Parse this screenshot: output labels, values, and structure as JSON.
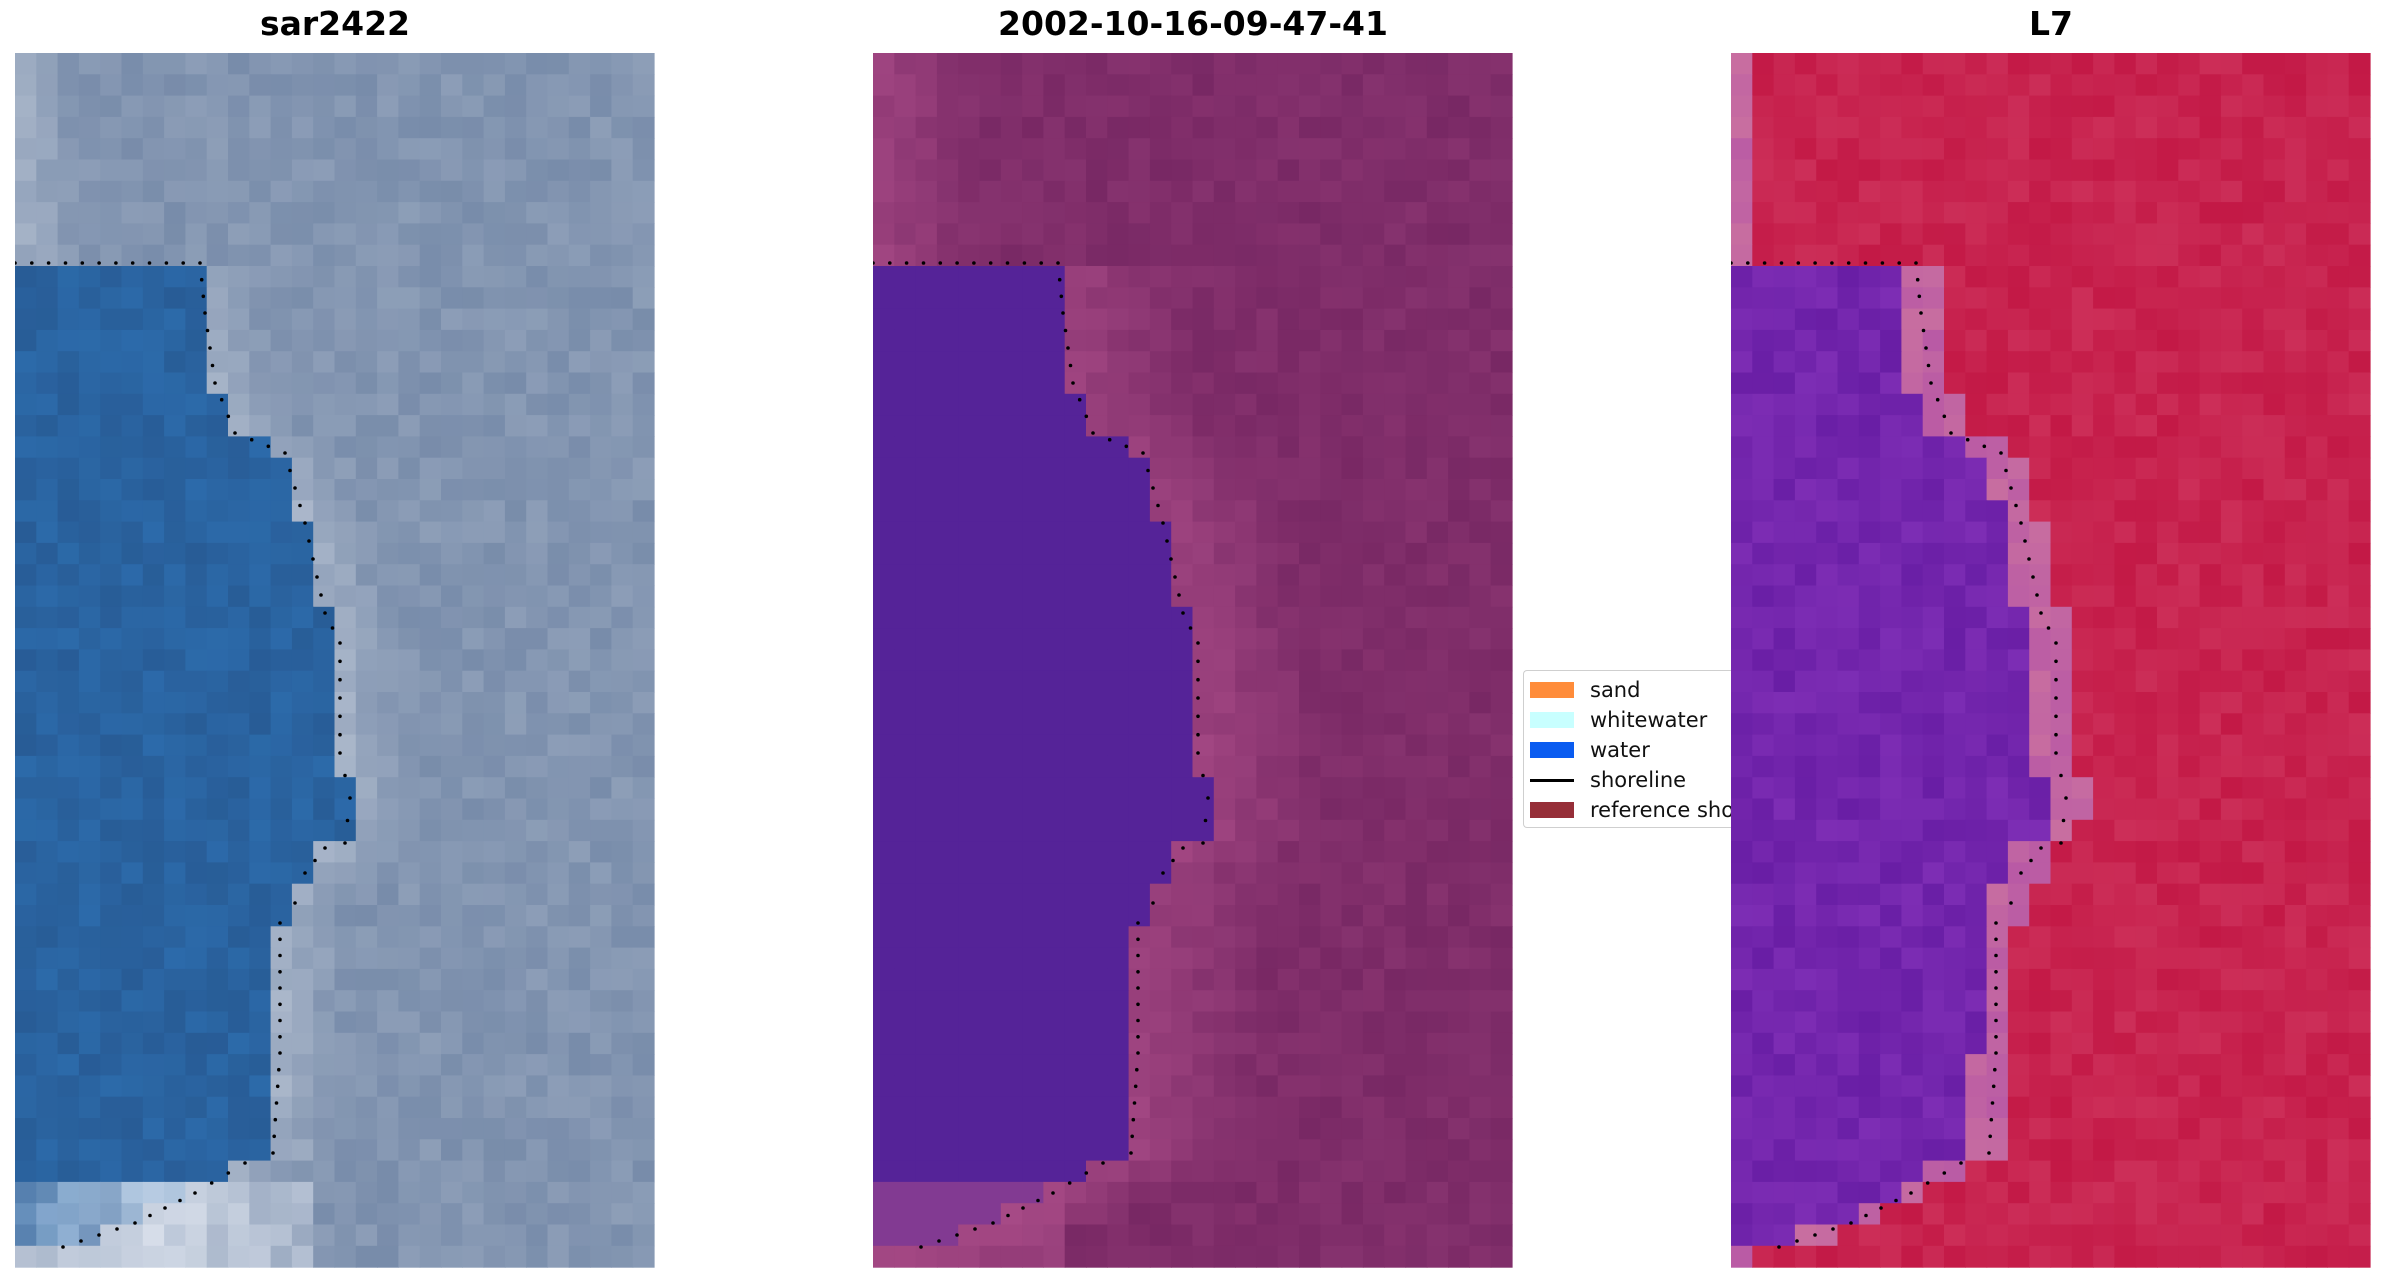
{
  "panels": [
    {
      "title": "sar2422",
      "kind": "rgb",
      "base_color": "#2b5f9a",
      "land_color": "#7f93b5"
    },
    {
      "title": "2002-10-16-09-47-41",
      "kind": "classified",
      "base_color": "#552398",
      "land_color": "#7a2d6a"
    },
    {
      "title": "L7",
      "kind": "index",
      "base_color": "#6a1fa6",
      "land_color": "#c21a45"
    }
  ],
  "legend": {
    "items": [
      {
        "label": "sand",
        "color": "#ff8c3a",
        "type": "patch"
      },
      {
        "label": "whitewater",
        "color": "#c8ffff",
        "type": "patch"
      },
      {
        "label": "water",
        "color": "#0a5cf0",
        "type": "patch"
      },
      {
        "label": "shoreline",
        "color": "#000000",
        "type": "line"
      },
      {
        "label": "reference shoreline",
        "color": "#962e38",
        "type": "patch"
      }
    ]
  },
  "colors": {
    "shoreline_dots": "#000000",
    "background": "#ffffff"
  }
}
